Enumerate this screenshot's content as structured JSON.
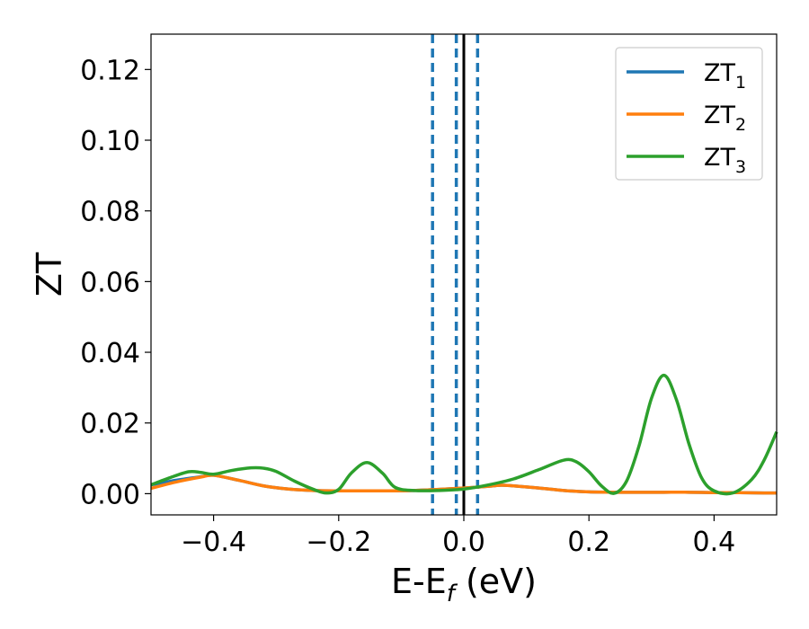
{
  "chart_data": {
    "type": "line",
    "xlabel": "E-E",
    "xlabel_sub": "f",
    "xlabel_unit": " (eV)",
    "ylabel": "ZT",
    "xlim": [
      -0.5,
      0.5
    ],
    "ylim": [
      -0.006,
      0.13
    ],
    "x_ticks": [
      -0.4,
      -0.2,
      0.0,
      0.2,
      0.4
    ],
    "x_tick_labels": [
      "−0.4",
      "−0.2",
      "0.0",
      "0.2",
      "0.4"
    ],
    "y_ticks": [
      0.0,
      0.02,
      0.04,
      0.06,
      0.08,
      0.1,
      0.12
    ],
    "y_tick_labels": [
      "0.00",
      "0.02",
      "0.04",
      "0.06",
      "0.08",
      "0.10",
      "0.12"
    ],
    "grid": false,
    "legend_position": "top-right",
    "vertical_lines": [
      {
        "x": -0.05,
        "style": "dashed",
        "color": "#1f77b4"
      },
      {
        "x": -0.012,
        "style": "dashed",
        "color": "#1f77b4"
      },
      {
        "x": 0.0,
        "style": "solid",
        "color": "#000000"
      },
      {
        "x": 0.022,
        "style": "dashed",
        "color": "#1f77b4"
      }
    ],
    "series": [
      {
        "name": "ZT",
        "subscript": "1",
        "color": "#1f77b4",
        "x": [
          -0.5,
          -0.46,
          -0.42,
          -0.4,
          -0.36,
          -0.32,
          -0.28,
          -0.24,
          -0.2,
          -0.16,
          -0.12,
          -0.08,
          -0.04,
          0.0,
          0.04,
          0.06,
          0.08,
          0.12,
          0.16,
          0.2,
          0.24,
          0.28,
          0.32,
          0.36,
          0.4,
          0.44,
          0.48,
          0.5
        ],
        "y": [
          0.0025,
          0.0038,
          0.0048,
          0.0052,
          0.0038,
          0.0022,
          0.0013,
          0.0009,
          0.0008,
          0.0008,
          0.0008,
          0.0009,
          0.0012,
          0.0016,
          0.0021,
          0.0024,
          0.0022,
          0.0016,
          0.0009,
          0.0005,
          0.0004,
          0.0004,
          0.0004,
          0.0004,
          0.0003,
          0.0003,
          0.0002,
          0.0002
        ]
      },
      {
        "name": "ZT",
        "subscript": "2",
        "color": "#ff7f0e",
        "x": [
          -0.5,
          -0.46,
          -0.42,
          -0.4,
          -0.36,
          -0.32,
          -0.28,
          -0.24,
          -0.2,
          -0.16,
          -0.12,
          -0.08,
          -0.04,
          0.0,
          0.04,
          0.06,
          0.08,
          0.12,
          0.16,
          0.2,
          0.24,
          0.28,
          0.32,
          0.36,
          0.4,
          0.44,
          0.48,
          0.5
        ],
        "y": [
          0.0015,
          0.0033,
          0.0047,
          0.0052,
          0.0038,
          0.0022,
          0.0013,
          0.0009,
          0.0008,
          0.0008,
          0.0008,
          0.0009,
          0.0012,
          0.0016,
          0.0021,
          0.0024,
          0.0022,
          0.0016,
          0.0009,
          0.0005,
          0.0004,
          0.0004,
          0.0004,
          0.0004,
          0.0003,
          0.0003,
          0.0002,
          0.0002
        ]
      },
      {
        "name": "ZT",
        "subscript": "3",
        "color": "#2ca02c",
        "x": [
          -0.5,
          -0.47,
          -0.44,
          -0.42,
          -0.4,
          -0.37,
          -0.34,
          -0.32,
          -0.3,
          -0.27,
          -0.24,
          -0.22,
          -0.2,
          -0.18,
          -0.155,
          -0.13,
          -0.11,
          -0.08,
          -0.04,
          0.0,
          0.04,
          0.08,
          0.12,
          0.16,
          0.18,
          0.2,
          0.22,
          0.24,
          0.26,
          0.28,
          0.3,
          0.32,
          0.34,
          0.36,
          0.38,
          0.4,
          0.43,
          0.46,
          0.48,
          0.5
        ],
        "y": [
          0.0025,
          0.0045,
          0.0062,
          0.006,
          0.0055,
          0.0066,
          0.0073,
          0.0072,
          0.0063,
          0.0035,
          0.0012,
          0.0002,
          0.0012,
          0.0058,
          0.0088,
          0.0058,
          0.0018,
          0.0009,
          0.0009,
          0.0013,
          0.0025,
          0.0042,
          0.0068,
          0.0095,
          0.009,
          0.0062,
          0.0022,
          0.0001,
          0.0035,
          0.0135,
          0.027,
          0.0335,
          0.0265,
          0.014,
          0.0045,
          0.0008,
          0.0002,
          0.004,
          0.0095,
          0.0175
        ]
      }
    ]
  }
}
